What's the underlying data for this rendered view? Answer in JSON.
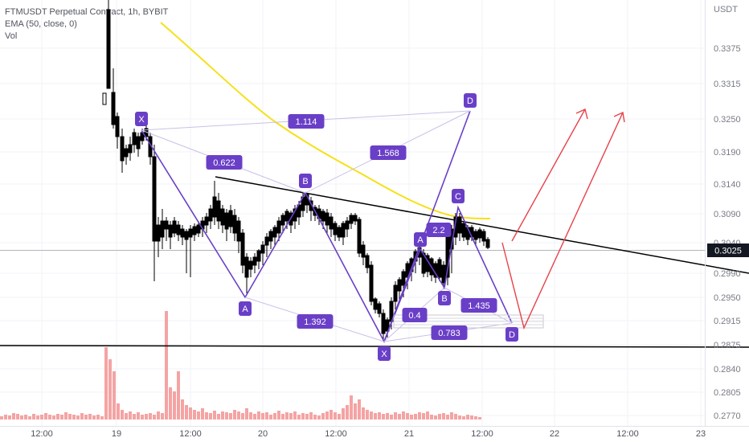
{
  "legend": {
    "symbol_line": "FTMUSDT Perpetual Contract, 1h, BYBIT",
    "ema_line": "EMA (50, close, 0)",
    "vol_line": "Vol"
  },
  "price_axis": {
    "unit": "USDT",
    "current_price": "0.3025",
    "current_price_value": 0.3025,
    "ticks": [
      "0.3375",
      "0.3315",
      "0.3250",
      "0.3190",
      "0.3140",
      "0.3090",
      "0.3040",
      "0.2990",
      "0.2950",
      "0.2915",
      "0.2875",
      "0.2840",
      "0.2805",
      "0.2770"
    ]
  },
  "time_axis": {
    "ticks": [
      "12:00",
      "19",
      "12:00",
      "20",
      "12:00",
      "21",
      "12:00",
      "22",
      "12:00",
      "23"
    ]
  },
  "chart_data": {
    "type": "candlestick",
    "title": "FTMUSDT Perpetual Contract, 1h, BYBIT",
    "ylabel": "USDT",
    "current_price": 0.3025,
    "series": [
      {
        "name": "EMA (50, close, 0)",
        "type": "line",
        "color": "#f5e11a"
      }
    ],
    "harmonic_labels": [
      "X",
      "A",
      "B",
      "C",
      "D",
      "X",
      "A",
      "B",
      "C",
      "D"
    ],
    "ratio_labels": [
      "1.114",
      "0.622",
      "1.568",
      "1.392",
      "2.2",
      "0.4",
      "1.435",
      "0.783"
    ],
    "colors": {
      "up_candle": "#ffffff",
      "down_candle": "#000000",
      "volume": "#f5a3a3",
      "pattern": "#6a3fc7",
      "ema": "#f5e11a",
      "projection": "#e8424a",
      "trendline": "#000000"
    }
  }
}
